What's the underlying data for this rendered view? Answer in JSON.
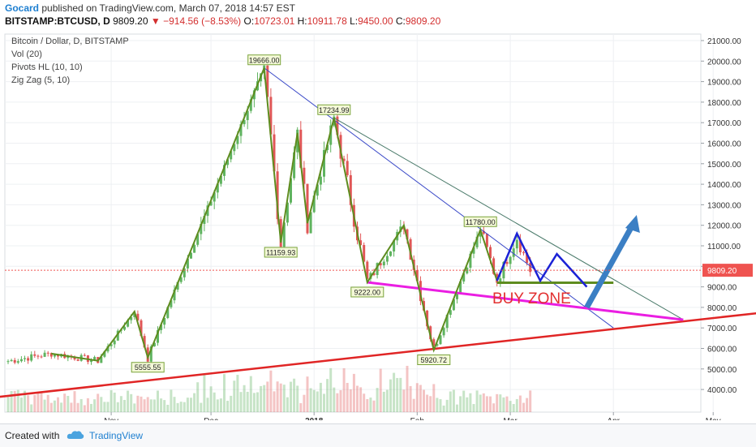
{
  "header": {
    "author": "Gocard",
    "published_text": "published on TradingView.com, March 07, 2018 14:57 EST",
    "symbol": "BITSTAMP:BTCUSD, D",
    "last": "9809.20",
    "change": "−914.56 (−8.53%)",
    "open": "10723.01",
    "high": "10911.78",
    "low": "9450.00",
    "close": "9809.20",
    "open_label": "O:",
    "high_label": "H:",
    "low_label": "L:",
    "close_label": "C:"
  },
  "legend": {
    "title": "Bitcoin / Dollar, D, BITSTAMP",
    "indicators": [
      "Vol (20)",
      "Pivots HL (10, 10)",
      "Zig Zag (5, 10)"
    ]
  },
  "footer": {
    "created": "Created with",
    "brand": "TradingView"
  },
  "colors": {
    "up": "#5fb35f",
    "down": "#e05656",
    "zigzag": "#5e8c1f",
    "trend_blue": "#3b4ac8",
    "red_line": "#e02525",
    "magenta": "#ea1ee2",
    "pattern_blue": "#1b22d6",
    "arrow": "#3b7fc4",
    "buy_zone": "#e23030",
    "price_tag": "#ef5350"
  },
  "chart_data": {
    "type": "candlestick",
    "title": "Bitcoin / Dollar, D, BITSTAMP",
    "x_ticks": [
      "Nov",
      "Dec",
      "2018",
      "Feb",
      "Mar",
      "Apr",
      "May"
    ],
    "y_ticks": [
      "21000.00",
      "20000.00",
      "19000.00",
      "18000.00",
      "17000.00",
      "16000.00",
      "15000.00",
      "14000.00",
      "13000.00",
      "12000.00",
      "11000.00",
      "10000.00",
      "9000.00",
      "8000.00",
      "7000.00",
      "6000.00",
      "5000.00",
      "4000.00"
    ],
    "ylim": [
      3300,
      21500
    ],
    "current_price": "9809.20",
    "zigzag": [
      {
        "date": "2017-10-14",
        "price": 5750
      },
      {
        "date": "2017-10-28",
        "price": 5400
      },
      {
        "date": "2017-11-08",
        "price": 7800
      },
      {
        "date": "2017-11-12",
        "price": 5555.55,
        "label": "5555.55"
      },
      {
        "date": "2017-12-17",
        "price": 19666.0,
        "label": "19666.00"
      },
      {
        "date": "2017-12-22",
        "price": 11159.93,
        "label": "11159.93"
      },
      {
        "date": "2017-12-27",
        "price": 16500
      },
      {
        "date": "2017-12-30",
        "price": 12100
      },
      {
        "date": "2018-01-07",
        "price": 17234.99,
        "label": "17234.99"
      },
      {
        "date": "2018-01-17",
        "price": 9222.0,
        "label": "9222.00"
      },
      {
        "date": "2018-01-28",
        "price": 12000
      },
      {
        "date": "2018-02-06",
        "price": 5920.72,
        "label": "5920.72"
      },
      {
        "date": "2018-02-20",
        "price": 11780.0,
        "label": "11780.00"
      },
      {
        "date": "2018-02-25",
        "price": 9300
      }
    ],
    "annotations": {
      "buy_zone": "BUY ZONE",
      "trendlines": [
        {
          "name": "blue-resistance",
          "from": {
            "date": "2017-12-17",
            "price": 19666
          },
          "to": {
            "date": "2018-04-01",
            "price": 7000
          }
        },
        {
          "name": "green-resistance",
          "from": {
            "date": "2018-01-07",
            "price": 17234.99
          },
          "to": {
            "date": "2018-04-22",
            "price": 7400
          }
        },
        {
          "name": "red-support",
          "from": {
            "date": "2017-09-26",
            "price": 3600
          },
          "to": {
            "date": "2018-05-30",
            "price": 8000
          }
        },
        {
          "name": "magenta-support",
          "from": {
            "date": "2018-01-17",
            "price": 9222
          },
          "to": {
            "date": "2018-04-22",
            "price": 7400
          }
        },
        {
          "name": "green-neckline",
          "from": {
            "date": "2018-02-25",
            "price": 9200
          },
          "to": {
            "date": "2018-04-01",
            "price": 9200
          }
        }
      ],
      "forecast_path": [
        {
          "date": "2018-02-25",
          "price": 9300
        },
        {
          "date": "2018-03-03",
          "price": 11600
        },
        {
          "date": "2018-03-10",
          "price": 9300
        },
        {
          "date": "2018-03-15",
          "price": 10600
        },
        {
          "date": "2018-03-24",
          "price": 9000
        }
      ],
      "arrow": {
        "from": {
          "date": "2018-03-24",
          "price": 8000
        },
        "to": {
          "date": "2018-04-08",
          "price": 12500
        }
      }
    }
  }
}
